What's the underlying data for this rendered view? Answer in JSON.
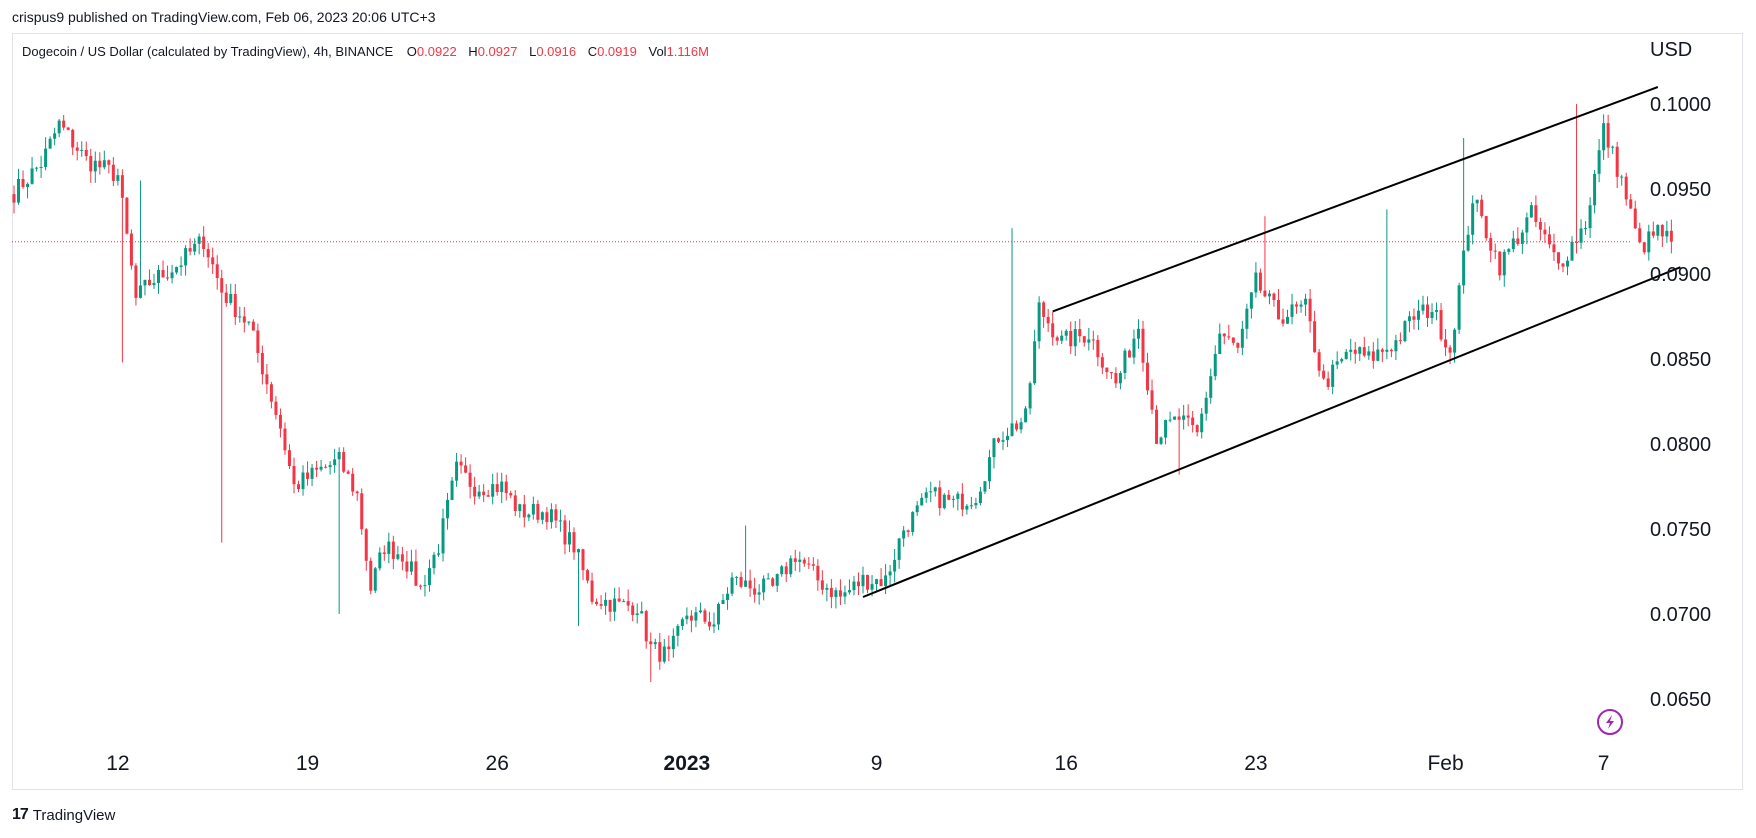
{
  "header": {
    "published_line": "crispus9 published on TradingView.com, Feb 06, 2023 20:06 UTC+3"
  },
  "legend": {
    "symbol": "Dogecoin / US Dollar (calculated by TradingView), 4h, BINANCE",
    "open_label": "O",
    "open": "0.0922",
    "high_label": "H",
    "high": "0.0927",
    "low_label": "L",
    "low": "0.0916",
    "close_label": "C",
    "close": "0.0919",
    "vol_label": "Vol",
    "vol": "1.116M"
  },
  "footer": {
    "brand": "TradingView",
    "mark": "17"
  },
  "colors": {
    "up": "#089981",
    "down": "#f23645",
    "price_line": "#f23645",
    "trendline": "#000000",
    "grid_text": "#131722"
  },
  "chart_data": {
    "type": "candlestick",
    "interval": "4h",
    "currency_label": "USD",
    "ylim": [
      0.0615,
      0.1035
    ],
    "y_ticks": [
      "0.1000",
      "0.0950",
      "0.0900",
      "0.0850",
      "0.0800",
      "0.0750",
      "0.0700",
      "0.0650"
    ],
    "x_ticks": [
      {
        "label": "12",
        "bar": 23,
        "bold": false
      },
      {
        "label": "19",
        "bar": 65,
        "bold": false
      },
      {
        "label": "26",
        "bar": 107,
        "bold": false
      },
      {
        "label": "2023",
        "bar": 149,
        "bold": true
      },
      {
        "label": "9",
        "bar": 191,
        "bold": false
      },
      {
        "label": "16",
        "bar": 233,
        "bold": false
      },
      {
        "label": "23",
        "bar": 275,
        "bold": false
      },
      {
        "label": "Feb",
        "bar": 317,
        "bold": false
      },
      {
        "label": "7",
        "bar": 352,
        "bold": false
      }
    ],
    "current_price": 0.0919,
    "trendlines": [
      {
        "name": "channel-upper",
        "x1": 230,
        "y1": 0.0878,
        "x2": 364,
        "y2": 0.101
      },
      {
        "name": "channel-lower",
        "x1": 188,
        "y1": 0.071,
        "x2": 369,
        "y2": 0.0904
      }
    ],
    "bar_count": 368,
    "keypoints": [
      [
        0,
        0.0948
      ],
      [
        6,
        0.0965
      ],
      [
        10,
        0.0988
      ],
      [
        16,
        0.0967
      ],
      [
        23,
        0.0958
      ],
      [
        27,
        0.0885
      ],
      [
        30,
        0.0895
      ],
      [
        36,
        0.0905
      ],
      [
        42,
        0.092
      ],
      [
        46,
        0.089
      ],
      [
        52,
        0.087
      ],
      [
        55,
        0.0845
      ],
      [
        59,
        0.081
      ],
      [
        62,
        0.0775
      ],
      [
        68,
        0.0785
      ],
      [
        72,
        0.079
      ],
      [
        76,
        0.077
      ],
      [
        79,
        0.0715
      ],
      [
        82,
        0.074
      ],
      [
        86,
        0.0735
      ],
      [
        90,
        0.0715
      ],
      [
        94,
        0.074
      ],
      [
        98,
        0.0785
      ],
      [
        102,
        0.0775
      ],
      [
        108,
        0.0775
      ],
      [
        112,
        0.076
      ],
      [
        118,
        0.076
      ],
      [
        124,
        0.074
      ],
      [
        128,
        0.071
      ],
      [
        134,
        0.0705
      ],
      [
        138,
        0.0705
      ],
      [
        141,
        0.068
      ],
      [
        145,
        0.0675
      ],
      [
        149,
        0.07
      ],
      [
        155,
        0.0695
      ],
      [
        159,
        0.072
      ],
      [
        164,
        0.0715
      ],
      [
        168,
        0.0715
      ],
      [
        173,
        0.0735
      ],
      [
        178,
        0.072
      ],
      [
        183,
        0.071
      ],
      [
        188,
        0.072
      ],
      [
        193,
        0.072
      ],
      [
        197,
        0.075
      ],
      [
        203,
        0.077
      ],
      [
        208,
        0.0765
      ],
      [
        213,
        0.077
      ],
      [
        218,
        0.0805
      ],
      [
        224,
        0.0815
      ],
      [
        227,
        0.088
      ],
      [
        232,
        0.086
      ],
      [
        238,
        0.0865
      ],
      [
        244,
        0.0835
      ],
      [
        249,
        0.087
      ],
      [
        253,
        0.0805
      ],
      [
        258,
        0.0815
      ],
      [
        262,
        0.0805
      ],
      [
        267,
        0.0865
      ],
      [
        271,
        0.0855
      ],
      [
        275,
        0.0895
      ],
      [
        280,
        0.0875
      ],
      [
        286,
        0.088
      ],
      [
        290,
        0.0835
      ],
      [
        296,
        0.0855
      ],
      [
        300,
        0.085
      ],
      [
        306,
        0.086
      ],
      [
        310,
        0.0875
      ],
      [
        314,
        0.088
      ],
      [
        318,
        0.0855
      ],
      [
        323,
        0.0945
      ],
      [
        329,
        0.0905
      ],
      [
        336,
        0.0935
      ],
      [
        342,
        0.0905
      ],
      [
        348,
        0.093
      ],
      [
        352,
        0.0985
      ],
      [
        356,
        0.0955
      ],
      [
        360,
        0.0915
      ],
      [
        364,
        0.0925
      ],
      [
        367,
        0.0919
      ]
    ],
    "extremes": [
      [
        24,
        0.0848,
        "low"
      ],
      [
        28,
        0.0955,
        "high"
      ],
      [
        46,
        0.0742,
        "low"
      ],
      [
        72,
        0.07,
        "low"
      ],
      [
        125,
        0.0693,
        "low"
      ],
      [
        141,
        0.066,
        "low"
      ],
      [
        162,
        0.0752,
        "high"
      ],
      [
        221,
        0.0927,
        "high"
      ],
      [
        258,
        0.0782,
        "low"
      ],
      [
        277,
        0.0934,
        "high"
      ],
      [
        304,
        0.0938,
        "high"
      ],
      [
        318,
        0.0847,
        "low"
      ],
      [
        321,
        0.098,
        "high"
      ],
      [
        346,
        0.1,
        "high"
      ]
    ]
  }
}
